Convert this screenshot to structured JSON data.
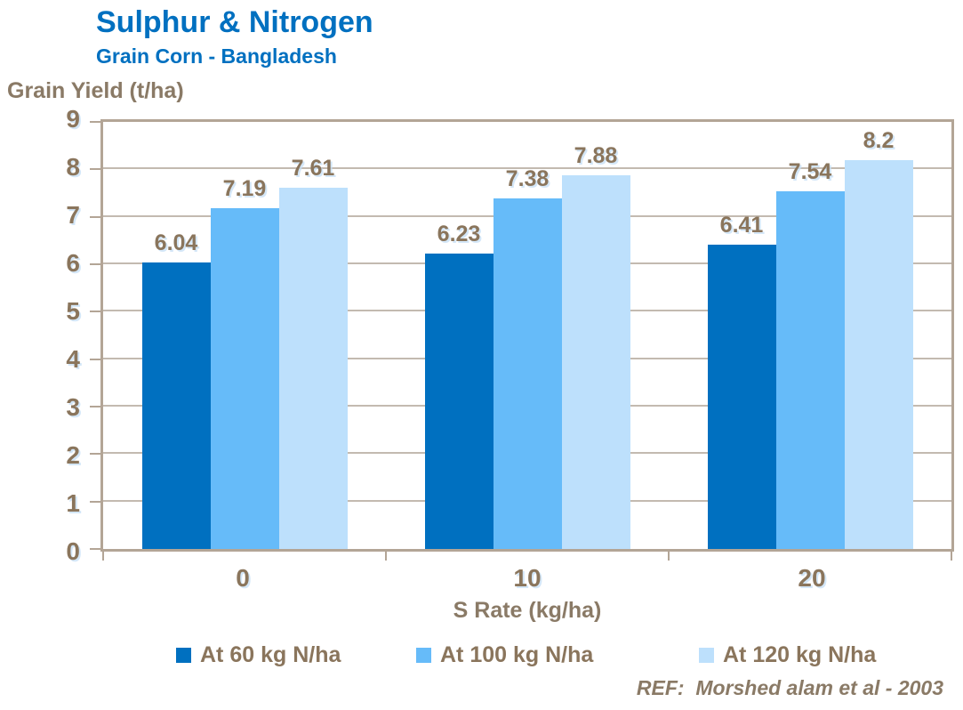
{
  "header": {
    "title": "Sulphur & Nitrogen",
    "subtitle": "Grain Corn - Bangladesh"
  },
  "footer": {
    "reference": "REF:  Morshed alam et al - 2003"
  },
  "colors": {
    "title_blue": "#0070C0",
    "text_brown": "#8a755c",
    "axis_line": "#b3a596",
    "gridline": "#c3bab0",
    "series_dark_blue": "#0070C0",
    "series_medium_blue": "#66BBF9",
    "series_light_blue": "#BDE0FC"
  },
  "chart_data": {
    "type": "bar",
    "title": "Sulphur & Nitrogen",
    "subtitle": "Grain Corn - Bangladesh",
    "categories": [
      "0",
      "10",
      "20"
    ],
    "series": [
      {
        "name": "At 60 kg N/ha",
        "color": "#0070C0",
        "values": [
          6.04,
          6.23,
          6.41
        ]
      },
      {
        "name": "At 100 kg N/ha",
        "color": "#66BBF9",
        "values": [
          7.19,
          7.38,
          7.54
        ]
      },
      {
        "name": "At 120 kg N/ha",
        "color": "#BDE0FC",
        "values": [
          7.61,
          7.88,
          8.2
        ]
      }
    ],
    "xlabel": "S Rate (kg/ha)",
    "ylabel": "Grain Yield (t/ha)",
    "ylim": [
      0,
      9
    ],
    "ytick_step": 1,
    "grid": true,
    "legend_position": "bottom",
    "value_labels": true,
    "reference": "REF:  Morshed alam et al - 2003"
  }
}
